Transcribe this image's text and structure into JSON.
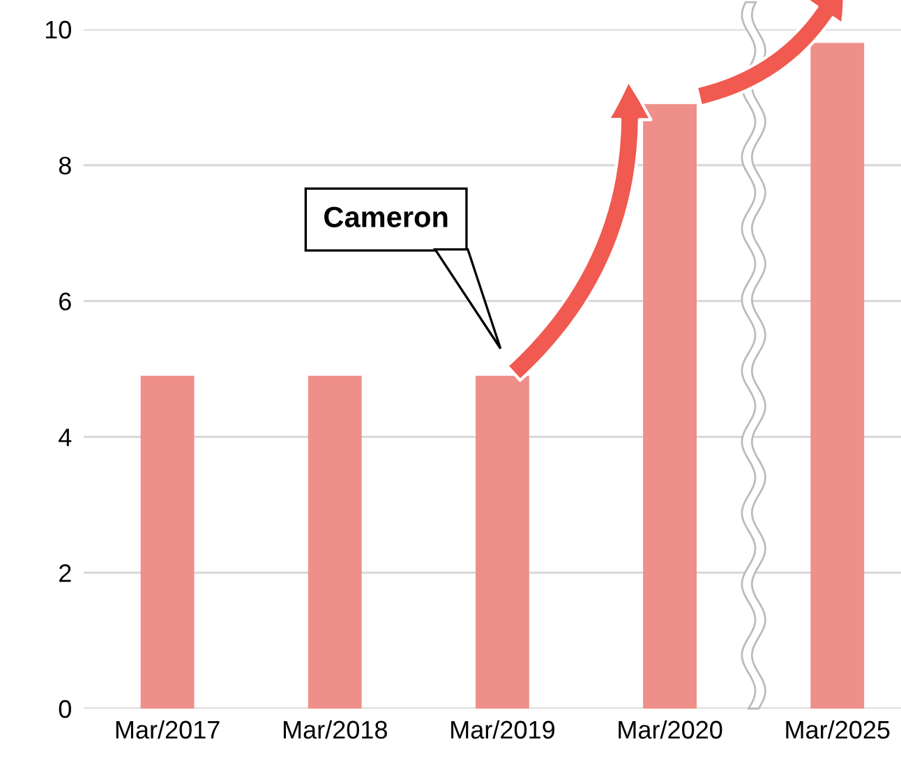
{
  "chart_data": {
    "type": "bar",
    "categories": [
      "Mar/2017",
      "Mar/2018",
      "Mar/2019",
      "Mar/2020",
      "Mar/2025"
    ],
    "values": [
      4.9,
      4.9,
      4.9,
      8.9,
      9.8
    ],
    "color": "#ef8f89",
    "ylim": [
      0,
      10
    ],
    "yticks": [
      0,
      2,
      4,
      6,
      8,
      10
    ],
    "grid": "y",
    "annotations": [
      "Cameron"
    ]
  }
}
